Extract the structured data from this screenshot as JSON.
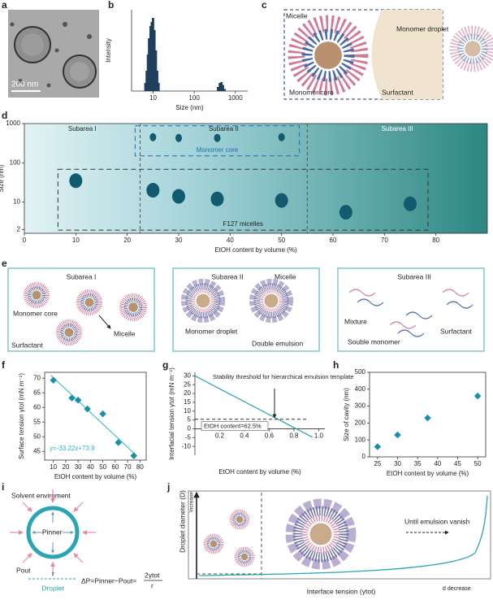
{
  "panel_labels": [
    "a",
    "b",
    "c",
    "d",
    "e",
    "f",
    "g",
    "h",
    "i",
    "j"
  ],
  "panel_a": {
    "scale_bar": "200 nm"
  },
  "panel_c": {
    "labels": [
      "Micelle",
      "Monomer droplet",
      "Monomer core",
      "Surfactant"
    ]
  },
  "panel_e": {
    "boxes": [
      {
        "title": "Subarea I",
        "labels": [
          "Monomer core",
          "Micelle",
          "Surfactant"
        ]
      },
      {
        "title": "Subarea II",
        "labels": [
          "Micelle",
          "Monomer droplet",
          "Double emulsion"
        ]
      },
      {
        "title": "Subarea III",
        "labels": [
          "Mixture",
          "Surfactant",
          "Souble monomer"
        ]
      }
    ]
  },
  "panel_i": {
    "environment": "Solvent enviroment",
    "p_inner": "Pinner",
    "p_out": "Pout",
    "radius": "r",
    "droplet": "Droplet",
    "equation": "ΔP=Pinner−Pout=",
    "numerator": "2γtot",
    "denominator": "r"
  },
  "panel_j": {
    "y_label": "Droplet diameter (D)",
    "y_arrow": "Increase",
    "x_label": "Interface tension (γtot)",
    "note": "Until emulsion vanish",
    "x_end": "d decrease"
  },
  "chart_data": [
    {
      "type": "bar",
      "x_label": "Size (nm)",
      "y_label": "Intensity",
      "xscale": "log",
      "xlim": [
        3,
        2000
      ],
      "xticks": [
        10,
        100,
        1000
      ],
      "ylim": [
        0,
        20
      ],
      "color": "#1f3f5f",
      "x": [
        6.5,
        7,
        7.5,
        8,
        8.7,
        9.3,
        10,
        10.8,
        11.7,
        12.6,
        13.6,
        380,
        420,
        460,
        500,
        550
      ],
      "values": [
        2,
        5,
        9,
        13,
        16,
        17,
        18,
        15,
        10,
        5,
        2,
        1,
        2,
        2.2,
        1.5,
        0.5
      ]
    },
    {
      "type": "scatter",
      "x_label": "EtOH content by volume (%)",
      "y_label": "Size (nm)",
      "yscale": "log",
      "marker": "blob",
      "frame": true,
      "xlim": [
        0,
        90
      ],
      "xticks": [
        0,
        10,
        20,
        30,
        40,
        50,
        60,
        70,
        80
      ],
      "ylim": [
        1.6,
        1000
      ],
      "yticks": [
        2,
        10,
        100,
        1000
      ],
      "regions": [
        "Subarea I",
        "Subarea II",
        "Subarea III"
      ],
      "dividers": [
        22.5,
        55
      ],
      "series": [
        {
          "name": "Monomer core",
          "color": "#125a6e",
          "x": [
            25,
            30,
            37.5,
            50
          ],
          "values": [
            450,
            430,
            430,
            450
          ]
        },
        {
          "name": "F127 micelles",
          "color": "#125a6e",
          "x": [
            10,
            25,
            30,
            37.5,
            50,
            62.5,
            75
          ],
          "values": [
            35,
            20,
            14,
            12,
            11,
            5.5,
            9
          ]
        }
      ]
    },
    {
      "type": "scatter",
      "x_label": "EtOH content by volume (%)",
      "y_label": "Surface tension γtol (mN m⁻¹)",
      "marker": "diamond",
      "frame": true,
      "xlim": [
        3,
        85
      ],
      "xticks": [
        10,
        20,
        30,
        40,
        50,
        60,
        70,
        80
      ],
      "ylim": [
        42,
        72
      ],
      "yticks": [
        45,
        50,
        55,
        60,
        65,
        70
      ],
      "series": [
        {
          "color": "#1a8fa8",
          "x": [
            10,
            25,
            30,
            37.5,
            50,
            62.5,
            75
          ],
          "values": [
            69.3,
            63.2,
            62.5,
            59.5,
            57.8,
            48,
            43.5
          ]
        }
      ],
      "fit": {
        "label": "y=-33.22x+73.9",
        "color": "#2ab3c8",
        "x": [
          8,
          76
        ],
        "values": [
          71,
          44
        ]
      }
    },
    {
      "type": "line",
      "x_label": "EtOH content by volume (%)",
      "y_label": "Interfacial tension γtot (mN m⁻¹)",
      "xlim": [
        0,
        1.05
      ],
      "xticks": [
        0.2,
        0.4,
        0.6,
        0.8,
        {
          "value": 1,
          "label": "1.0"
        }
      ],
      "ylim": [
        -15,
        32
      ],
      "yticks": [
        -10,
        -5,
        0,
        5,
        10,
        15,
        20,
        25,
        30
      ],
      "series": [
        {
          "color": "#2aa0b8",
          "x": [
            0,
            0.95
          ],
          "values": [
            30,
            -4.8
          ]
        }
      ],
      "threshold": 5.4,
      "annotation": "Stability threshold for hierarchical emulsion template",
      "threshold_label": "EtOH content=62.5%"
    },
    {
      "type": "scatter",
      "x_label": "EtOH content by volume (%)",
      "y_label": "Size of cavity (nm)",
      "marker": "diamond",
      "frame": true,
      "xlim": [
        23,
        52
      ],
      "xticks": [
        25,
        30,
        35,
        40,
        45,
        50
      ],
      "ylim": [
        0,
        500
      ],
      "yticks": [
        0,
        100,
        200,
        300,
        400,
        500
      ],
      "series": [
        {
          "color": "#1a8fa8",
          "x": [
            25,
            30,
            37.5,
            50
          ],
          "values": [
            60,
            130,
            230,
            360
          ]
        }
      ]
    }
  ]
}
